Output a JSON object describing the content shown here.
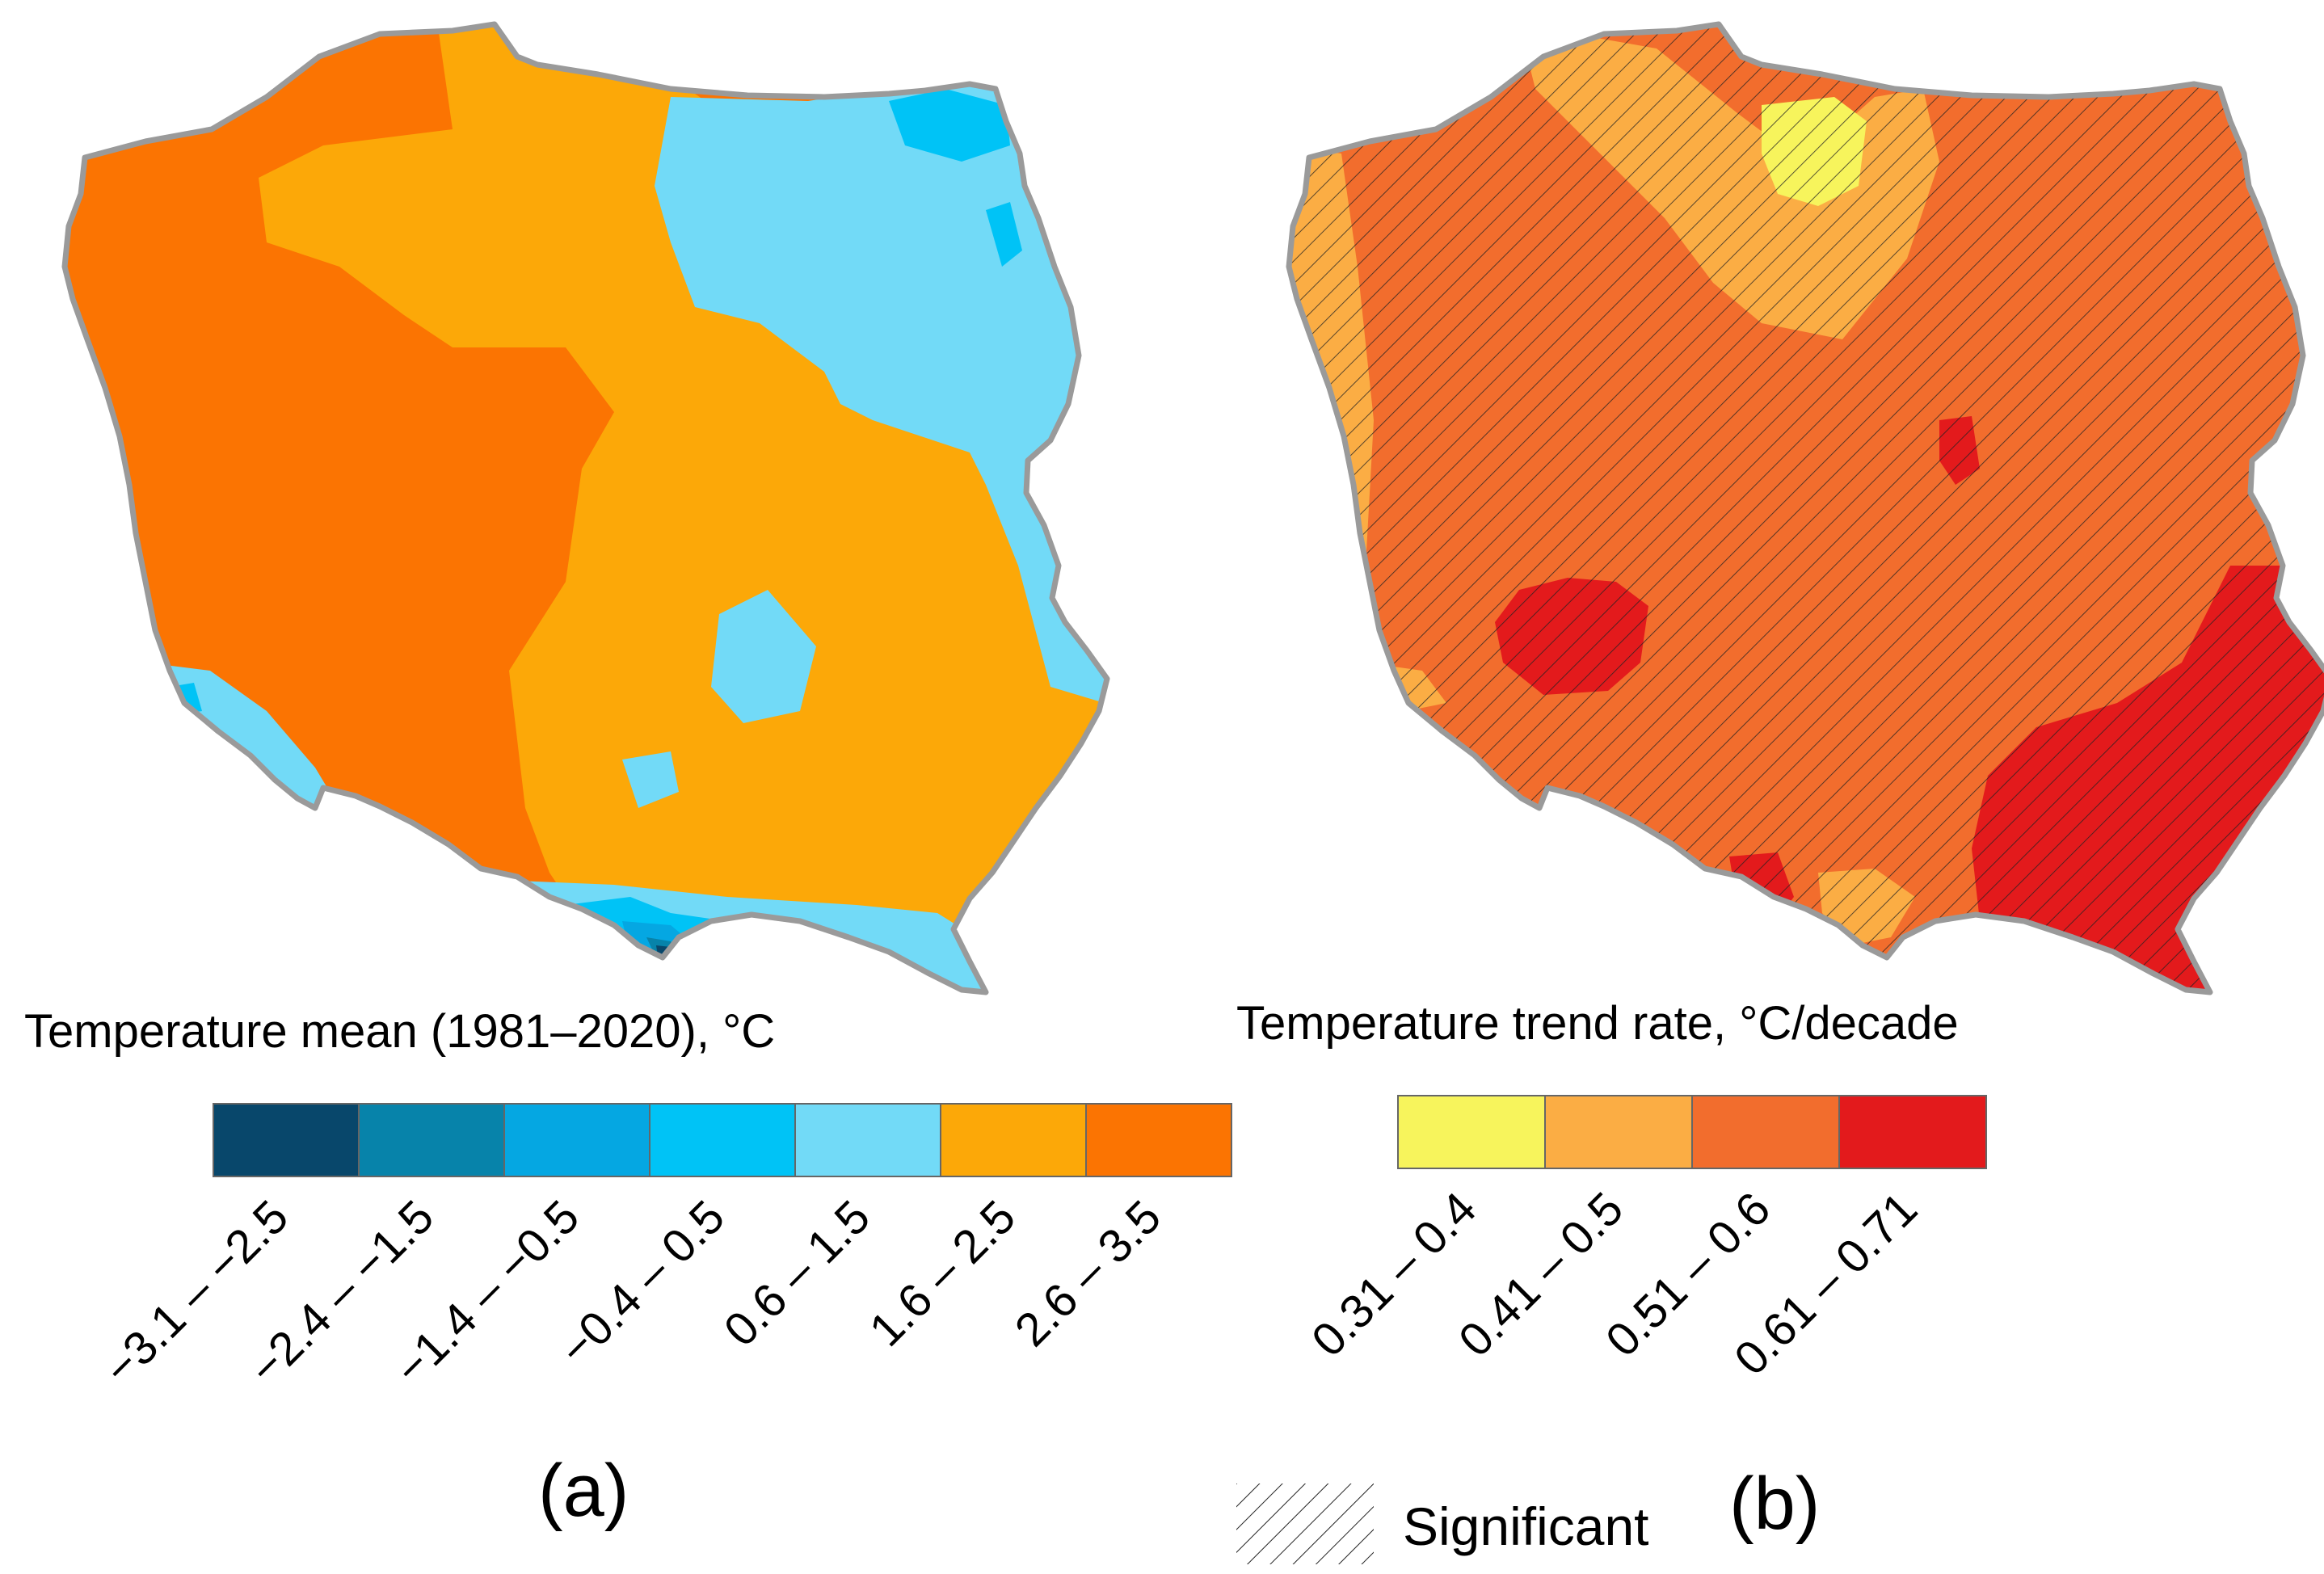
{
  "panel_a": {
    "title": "Temperature mean (1981–2020), °C",
    "label": "(a)",
    "legend": [
      {
        "range": "−3.1 – −2.5",
        "color": "#08476b"
      },
      {
        "range": "−2.4 – −1.5",
        "color": "#0783aa"
      },
      {
        "range": "−1.4 – −0.5",
        "color": "#05a7e2"
      },
      {
        "range": "−0.4 – 0.5",
        "color": "#00c3f6"
      },
      {
        "range": "0.6 – 1.5",
        "color": "#72daf7"
      },
      {
        "range": "1.6 – 2.5",
        "color": "#fca808"
      },
      {
        "range": "2.6 – 3.5",
        "color": "#fb7402"
      }
    ]
  },
  "panel_b": {
    "title": "Temperature trend rate, °C/decade",
    "label": "(b)",
    "legend": [
      {
        "range": "0.31 – 0.4",
        "color": "#f7f45c"
      },
      {
        "range": "0.41 – 0.5",
        "color": "#fbad44"
      },
      {
        "range": "0.51 – 0.6",
        "color": "#f26d2d"
      },
      {
        "range": "0.61 – 0.71",
        "color": "#e31a1c"
      }
    ],
    "significance_label": "Significant"
  }
}
